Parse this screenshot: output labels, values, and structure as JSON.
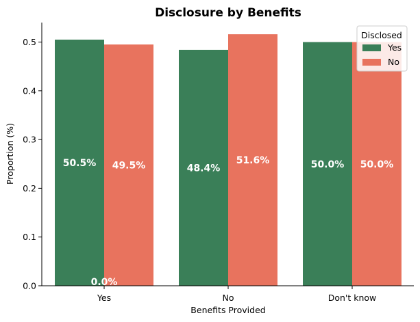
{
  "chart_data": {
    "type": "bar",
    "title": "Disclosure by Benefits",
    "xlabel": "Benefits Provided",
    "ylabel": "Proportion (%)",
    "categories": [
      "Yes",
      "No",
      "Don't know"
    ],
    "ylim": [
      0,
      0.54
    ],
    "yticks": [
      "0.0",
      "0.1",
      "0.2",
      "0.3",
      "0.4",
      "0.5"
    ],
    "grid": false,
    "legend": {
      "title": "Disclosed",
      "placement": "top-right"
    },
    "series": [
      {
        "name": "Yes",
        "color": "#3a7f58",
        "values": [
          0.505,
          0.484,
          0.5
        ],
        "labels": [
          "50.5%",
          "48.4%",
          "50.0%"
        ]
      },
      {
        "name": "No",
        "color": "#e8735e",
        "values": [
          0.495,
          0.516,
          0.5
        ],
        "labels": [
          "49.5%",
          "51.6%",
          "50.0%"
        ]
      }
    ],
    "annotations": [
      {
        "text": "0.0%",
        "category": "Yes",
        "y": 0.0
      }
    ]
  }
}
